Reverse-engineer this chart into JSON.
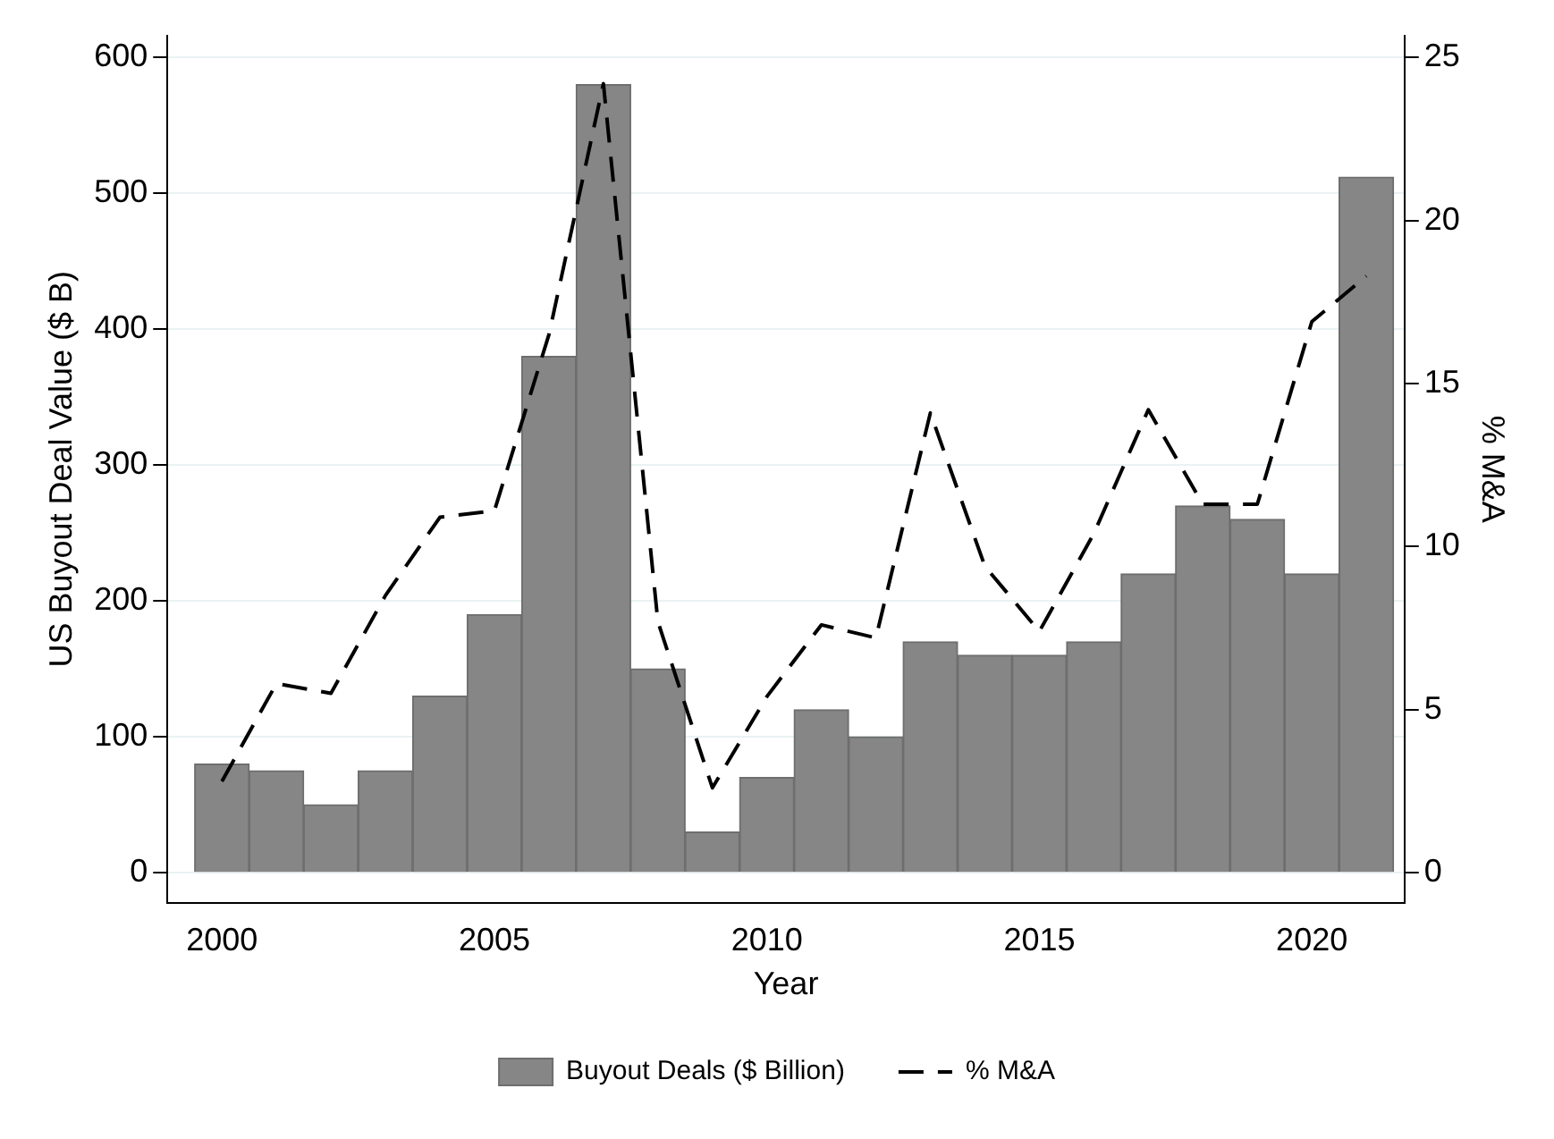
{
  "chart_data": {
    "type": "bar",
    "xlabel": "Year",
    "ylabel": "US Buyout Deal Value ($ B)",
    "y2label": "% M&A",
    "x": [
      2000,
      2001,
      2002,
      2003,
      2004,
      2005,
      2006,
      2007,
      2008,
      2009,
      2010,
      2011,
      2012,
      2013,
      2014,
      2015,
      2016,
      2017,
      2018,
      2019,
      2020,
      2021
    ],
    "series": [
      {
        "name": "Buyout Deals ($ Billion)",
        "color": "#868686",
        "values": [
          80,
          75,
          50,
          75,
          130,
          190,
          380,
          580,
          150,
          30,
          70,
          120,
          100,
          170,
          160,
          160,
          170,
          220,
          270,
          260,
          220,
          512
        ]
      },
      {
        "name": "% M&A",
        "type": "line",
        "axis": "y2",
        "color": "#000000",
        "line_style": "dashed",
        "marker": "none",
        "values": [
          2.8,
          5.8,
          5.5,
          8.5,
          10.9,
          11.1,
          16.5,
          24.2,
          7.7,
          2.6,
          5.4,
          7.6,
          7.2,
          14.1,
          9.4,
          7.4,
          10.4,
          14.2,
          11.3,
          11.3,
          16.9,
          18.3
        ]
      }
    ],
    "xlim": [
      1999,
      2021.7
    ],
    "xticks": [
      2000,
      2005,
      2010,
      2015,
      2020
    ],
    "ylim": [
      -22,
      616
    ],
    "yticks": [
      0,
      100,
      200,
      300,
      400,
      500,
      600
    ],
    "y2lim": [
      -0.92,
      25.67
    ],
    "y2ticks": [
      0,
      5,
      10,
      15,
      20,
      25
    ],
    "grid": "y",
    "legend": "bottom"
  }
}
